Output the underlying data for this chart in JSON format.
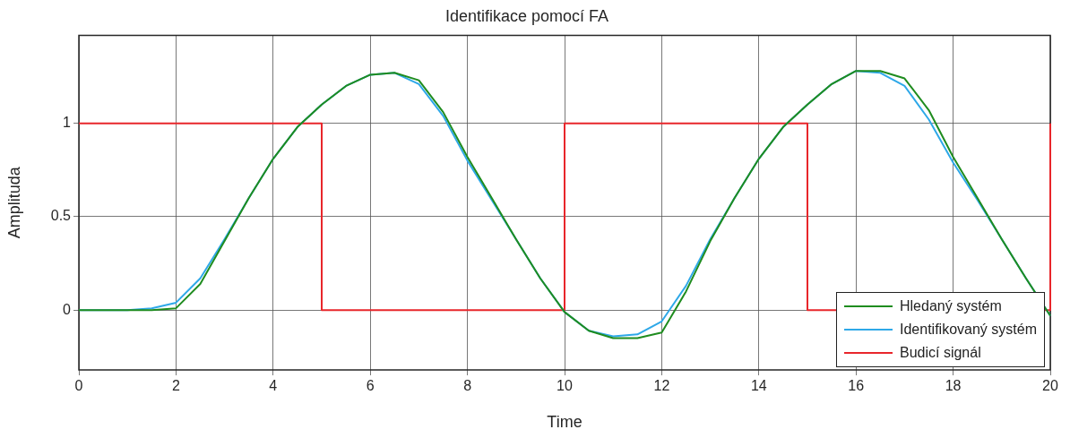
{
  "chart_data": {
    "type": "line",
    "title": "Identifikace pomocí FA",
    "xlabel": "Time",
    "ylabel": "Amplituda",
    "xlim": [
      0,
      20
    ],
    "xticks": [
      0,
      2,
      4,
      6,
      8,
      10,
      12,
      14,
      16,
      18,
      20
    ],
    "ylim": [
      -0.32,
      1.47
    ],
    "yticks": [
      0,
      0.5,
      1
    ],
    "grid": true,
    "legend": "bottom right",
    "series": [
      {
        "name": "Hledaný systém",
        "color": "#1f8c1f",
        "x": [
          0,
          0.5,
          1,
          1.5,
          2,
          2.5,
          3,
          3.5,
          4,
          4.5,
          5,
          5.5,
          6,
          6.5,
          7,
          7.5,
          8,
          8.5,
          9,
          9.5,
          10,
          10.5,
          11,
          11.5,
          12,
          12.5,
          13,
          13.5,
          14,
          14.5,
          15,
          15.5,
          16,
          16.5,
          17,
          17.5,
          18,
          18.5,
          19,
          19.5,
          20
        ],
        "values": [
          0,
          0,
          0,
          0,
          0.01,
          0.14,
          0.37,
          0.6,
          0.81,
          0.98,
          1.1,
          1.2,
          1.26,
          1.27,
          1.23,
          1.06,
          0.82,
          0.6,
          0.38,
          0.17,
          -0.01,
          -0.11,
          -0.15,
          -0.15,
          -0.12,
          0.1,
          0.37,
          0.6,
          0.81,
          0.98,
          1.1,
          1.21,
          1.28,
          1.28,
          1.24,
          1.07,
          0.82,
          0.6,
          0.38,
          0.17,
          -0.03
        ]
      },
      {
        "name": "Identifikovaný systém",
        "color": "#2ea8e8",
        "x": [
          0,
          0.5,
          1,
          1.5,
          2,
          2.5,
          3,
          3.5,
          4,
          4.5,
          5,
          5.5,
          6,
          6.5,
          7,
          7.5,
          8,
          8.5,
          9,
          9.5,
          10,
          10.5,
          11,
          11.5,
          12,
          12.5,
          13,
          13.5,
          14,
          14.5,
          15,
          15.5,
          16,
          16.5,
          17,
          17.5,
          18,
          18.5,
          19,
          19.5,
          20
        ],
        "values": [
          0,
          0,
          0,
          0.01,
          0.04,
          0.17,
          0.38,
          0.6,
          0.81,
          0.98,
          1.1,
          1.2,
          1.26,
          1.27,
          1.21,
          1.04,
          0.8,
          0.59,
          0.38,
          0.17,
          -0.01,
          -0.11,
          -0.14,
          -0.13,
          -0.06,
          0.13,
          0.38,
          0.6,
          0.81,
          0.98,
          1.1,
          1.21,
          1.28,
          1.27,
          1.2,
          1.02,
          0.79,
          0.59,
          0.38,
          0.17,
          -0.03
        ]
      },
      {
        "name": "Budicí signál",
        "color": "#e8262b",
        "type": "step",
        "x": [
          0,
          5,
          10,
          15,
          20
        ],
        "values": [
          1,
          0,
          1,
          0,
          1
        ]
      }
    ]
  }
}
